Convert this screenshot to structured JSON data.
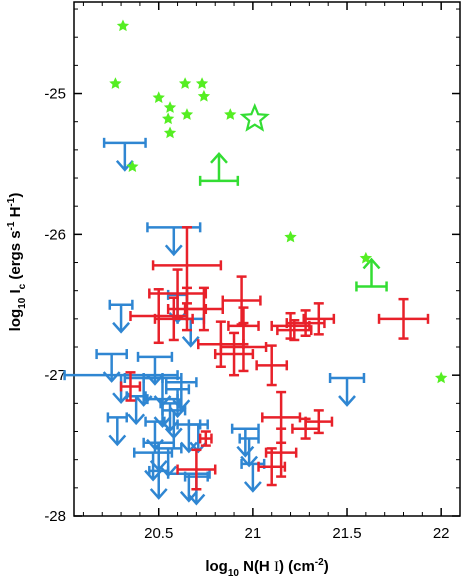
{
  "chart_data": {
    "type": "scatter",
    "title": "",
    "xlabel": "log10 N(H I) (cm-2)",
    "xlabel_parts": {
      "a": "log",
      "a_sub": "10",
      "b": " N(H ",
      "c": "I",
      "d": ") (cm",
      "d_sup": "-2",
      "e": ")"
    },
    "ylabel": "log10 Ic (ergs s-1 H-1)",
    "ylabel_parts": {
      "a": "log",
      "a_sub": "10",
      "b": " I",
      "b_sub": "c",
      "c": " (ergs s",
      "c_sup": "-1",
      "d": " H",
      "d_sup": "-1",
      "e": ")"
    },
    "xlim": [
      20.05,
      22.1
    ],
    "ylim": [
      -28.0,
      -24.35
    ],
    "xticks": [
      "20.5",
      "21",
      "21.5",
      "22"
    ],
    "yticks": [
      "-25",
      "-26",
      "-27",
      "-28"
    ],
    "colors": {
      "detections": "#e8212a",
      "upper_limits": "#2f86d2",
      "green_stars": "#55ee22",
      "green_limits": "#33dd33"
    },
    "series": [
      {
        "marker": "errorbar",
        "points": [
          {
            "x": 20.65,
            "y": -26.22,
            "xerr": 0.18,
            "yerr": 0.27
          },
          {
            "x": 20.6,
            "y": -26.42,
            "xerr": 0.15,
            "yerr": 0.17
          },
          {
            "x": 20.5,
            "y": -26.58,
            "xerr": 0.15,
            "yerr": 0.19
          },
          {
            "x": 20.58,
            "y": -26.6,
            "xerr": 0.1,
            "yerr": 0.15
          },
          {
            "x": 20.65,
            "y": -26.53,
            "xerr": 0.1,
            "yerr": 0.15
          },
          {
            "x": 20.74,
            "y": -26.53,
            "xerr": 0.1,
            "yerr": 0.15
          },
          {
            "x": 20.94,
            "y": -26.47,
            "xerr": 0.1,
            "yerr": 0.17
          },
          {
            "x": 20.95,
            "y": -26.65,
            "xerr": 0.08,
            "yerr": 0.13
          },
          {
            "x": 20.9,
            "y": -26.85,
            "xerr": 0.1,
            "yerr": 0.15
          },
          {
            "x": 20.83,
            "y": -26.78,
            "xerr": 0.12,
            "yerr": 0.16
          },
          {
            "x": 20.95,
            "y": -26.8,
            "xerr": 0.12,
            "yerr": 0.17
          },
          {
            "x": 21.1,
            "y": -26.93,
            "xerr": 0.08,
            "yerr": 0.14
          },
          {
            "x": 21.2,
            "y": -26.65,
            "xerr": 0.1,
            "yerr": 0.09
          },
          {
            "x": 21.22,
            "y": -26.68,
            "xerr": 0.09,
            "yerr": 0.07
          },
          {
            "x": 21.28,
            "y": -26.63,
            "xerr": 0.1,
            "yerr": 0.09
          },
          {
            "x": 21.35,
            "y": -26.6,
            "xerr": 0.08,
            "yerr": 0.11
          },
          {
            "x": 21.8,
            "y": -26.6,
            "xerr": 0.13,
            "yerr": 0.14
          },
          {
            "x": 20.35,
            "y": -27.08,
            "xerr": 0.05,
            "yerr": 0.1
          },
          {
            "x": 21.15,
            "y": -27.3,
            "xerr": 0.1,
            "yerr": 0.18
          },
          {
            "x": 21.28,
            "y": -27.38,
            "xerr": 0.07,
            "yerr": 0.07
          },
          {
            "x": 21.35,
            "y": -27.33,
            "xerr": 0.07,
            "yerr": 0.08
          },
          {
            "x": 21.15,
            "y": -27.55,
            "xerr": 0.08,
            "yerr": 0.17
          },
          {
            "x": 21.1,
            "y": -27.65,
            "xerr": 0.07,
            "yerr": 0.13
          },
          {
            "x": 20.75,
            "y": -27.45,
            "xerr": 0.03,
            "yerr": 0.05
          },
          {
            "x": 20.7,
            "y": -27.67,
            "xerr": 0.1,
            "yerr": 0.14
          }
        ]
      },
      {
        "marker": "upper-limit",
        "points": [
          {
            "x": 20.32,
            "y": -25.35,
            "xerr": 0.11
          },
          {
            "x": 20.58,
            "y": -25.95,
            "xerr": 0.14
          },
          {
            "x": 20.6,
            "y": -26.43,
            "xerr": 0.05
          },
          {
            "x": 20.67,
            "y": -26.6,
            "xerr": 0.07
          },
          {
            "x": 20.3,
            "y": -26.5,
            "xerr": 0.06
          },
          {
            "x": 20.25,
            "y": -26.85,
            "xerr": 0.08
          },
          {
            "x": 20.48,
            "y": -26.87,
            "xerr": 0.09
          },
          {
            "x": 20.3,
            "y": -27.0,
            "xerr": 0.3
          },
          {
            "x": 20.52,
            "y": -27.02,
            "xerr": 0.1
          },
          {
            "x": 20.42,
            "y": -27.02,
            "xerr": 0.1
          },
          {
            "x": 20.62,
            "y": -27.05,
            "xerr": 0.08
          },
          {
            "x": 20.6,
            "y": -27.1,
            "xerr": 0.06
          },
          {
            "x": 20.52,
            "y": -27.17,
            "xerr": 0.08
          },
          {
            "x": 20.38,
            "y": -27.15,
            "xerr": 0.05
          },
          {
            "x": 20.56,
            "y": -27.2,
            "xerr": 0.05
          },
          {
            "x": 20.58,
            "y": -27.25,
            "xerr": 0.06
          },
          {
            "x": 20.28,
            "y": -27.3,
            "xerr": 0.05
          },
          {
            "x": 20.48,
            "y": -27.33,
            "xerr": 0.05
          },
          {
            "x": 20.66,
            "y": -27.35,
            "xerr": 0.06
          },
          {
            "x": 20.71,
            "y": -27.35,
            "xerr": 0.05
          },
          {
            "x": 20.5,
            "y": -27.48,
            "xerr": 0.08
          },
          {
            "x": 20.55,
            "y": -27.52,
            "xerr": 0.07
          },
          {
            "x": 20.47,
            "y": -27.55,
            "xerr": 0.1
          },
          {
            "x": 20.96,
            "y": -27.38,
            "xerr": 0.07
          },
          {
            "x": 20.98,
            "y": -27.45,
            "xerr": 0.05
          },
          {
            "x": 20.5,
            "y": -27.68,
            "xerr": 0.05
          },
          {
            "x": 20.66,
            "y": -27.7,
            "xerr": 0.11
          },
          {
            "x": 20.7,
            "y": -27.72,
            "xerr": 0.06
          },
          {
            "x": 21.0,
            "y": -27.63,
            "xerr": 0.06
          },
          {
            "x": 21.5,
            "y": -27.02,
            "xerr": 0.09
          }
        ]
      },
      {
        "marker": "star",
        "points": [
          {
            "x": 20.31,
            "y": -24.52
          },
          {
            "x": 20.27,
            "y": -24.93
          },
          {
            "x": 20.5,
            "y": -25.03
          },
          {
            "x": 20.64,
            "y": -24.93
          },
          {
            "x": 20.73,
            "y": -24.93
          },
          {
            "x": 20.56,
            "y": -25.1
          },
          {
            "x": 20.74,
            "y": -25.02
          },
          {
            "x": 20.55,
            "y": -25.18
          },
          {
            "x": 20.65,
            "y": -25.15
          },
          {
            "x": 20.56,
            "y": -25.28
          },
          {
            "x": 20.88,
            "y": -25.15
          },
          {
            "x": 20.36,
            "y": -25.52
          },
          {
            "x": 21.2,
            "y": -26.02
          },
          {
            "x": 21.6,
            "y": -26.17
          },
          {
            "x": 22.0,
            "y": -27.02
          }
        ]
      },
      {
        "marker": "star-open",
        "points": [
          {
            "x": 21.01,
            "y": -25.18
          }
        ]
      },
      {
        "marker": "lower-limit",
        "points": [
          {
            "x": 20.82,
            "y": -25.62,
            "xerr": 0.1
          },
          {
            "x": 21.63,
            "y": -26.37,
            "xerr": 0.08
          }
        ]
      }
    ]
  }
}
